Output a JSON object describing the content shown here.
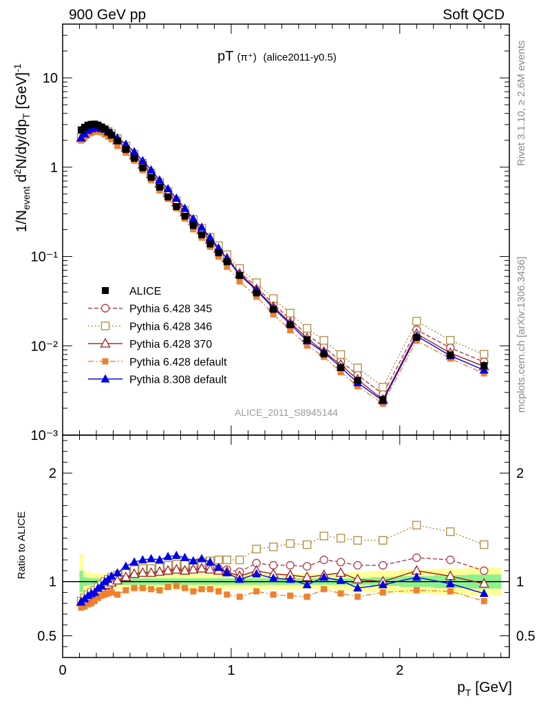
{
  "header": {
    "left": "900 GeV pp",
    "right": "Soft QCD"
  },
  "title": {
    "main": "pT",
    "particle": "(π⁺)",
    "detail": "(alice2011-y0.5)"
  },
  "side_labels": {
    "rivet": "Rivet 3.1.10, ≥ 2.6M events",
    "mcplots": "mcplots.cern.ch [arXiv:1306.3436]"
  },
  "watermark": "ALICE_2011_S8945144",
  "axes": {
    "ylabel_top": "1/N_event d²N/dy/dp_T [GeV]⁻¹",
    "ylabel_ratio": "Ratio to ALICE",
    "xlabel": "p_T [GeV]"
  },
  "colors": {
    "alice": "#000000",
    "p345": "#b03a48",
    "p346": "#b08a3e",
    "p370": "#9b1b1b",
    "p6def": "#f08030",
    "p8def": "#0000e6",
    "band_inner": "#8ef08e",
    "band_outer": "#ffff99"
  },
  "chart_data": {
    "type": "line",
    "x": [
      0.11,
      0.13,
      0.15,
      0.17,
      0.19,
      0.21,
      0.23,
      0.25,
      0.27,
      0.29,
      0.325,
      0.375,
      0.425,
      0.475,
      0.525,
      0.575,
      0.625,
      0.675,
      0.725,
      0.775,
      0.825,
      0.875,
      0.925,
      0.975,
      1.05,
      1.15,
      1.25,
      1.35,
      1.45,
      1.55,
      1.65,
      1.75,
      1.9,
      2.1,
      2.3,
      2.5
    ],
    "xlim": [
      0,
      2.65
    ],
    "top": {
      "yscale": "log",
      "ylim": [
        0.001,
        40
      ],
      "yticks": [
        0.001,
        0.01,
        0.1,
        1,
        10
      ],
      "ytick_labels": [
        "10⁻³",
        "10⁻²",
        "10⁻¹",
        "1",
        "10"
      ]
    },
    "ratio": {
      "ylim": [
        0.3,
        2.35
      ],
      "yticks": [
        0.5,
        1,
        2
      ],
      "ytick_labels": [
        "0.5",
        "1",
        "2"
      ]
    },
    "xticks": [
      0,
      1,
      2
    ],
    "xtick_labels": [
      "0",
      "1",
      "2"
    ],
    "legend_position": "left-middle",
    "data": {
      "name": "ALICE",
      "values": [
        2.62,
        2.8,
        2.96,
        3.02,
        3.04,
        2.96,
        2.82,
        2.66,
        2.47,
        2.28,
        1.97,
        1.58,
        1.26,
        0.985,
        0.768,
        0.597,
        0.465,
        0.362,
        0.283,
        0.222,
        0.175,
        0.138,
        0.11,
        0.0872,
        0.0612,
        0.0391,
        0.0256,
        0.0172,
        0.0117,
        0.0081,
        0.0057,
        0.0041,
        0.0025,
        0.0124,
        0.0079,
        0.006
      ]
    },
    "band": {
      "inner_half": [
        0.1,
        0.04,
        0.035,
        0.03,
        0.03,
        0.03,
        0.03,
        0.03,
        0.03,
        0.03,
        0.03,
        0.03,
        0.03,
        0.03,
        0.03,
        0.03,
        0.03,
        0.03,
        0.03,
        0.03,
        0.03,
        0.03,
        0.03,
        0.03,
        0.03,
        0.03,
        0.03,
        0.03,
        0.03,
        0.03,
        0.03,
        0.03,
        0.04,
        0.05,
        0.06,
        0.065
      ],
      "outer_half": [
        0.25,
        0.1,
        0.09,
        0.08,
        0.075,
        0.075,
        0.07,
        0.07,
        0.07,
        0.07,
        0.07,
        0.07,
        0.07,
        0.07,
        0.07,
        0.07,
        0.07,
        0.07,
        0.07,
        0.07,
        0.07,
        0.07,
        0.07,
        0.07,
        0.07,
        0.07,
        0.07,
        0.07,
        0.07,
        0.07,
        0.08,
        0.09,
        0.1,
        0.11,
        0.12,
        0.13
      ]
    },
    "series": [
      {
        "name": "Pythia 6.428 345",
        "marker": "circle-open",
        "dash": "6,3",
        "ratio": [
          0.81,
          0.84,
          0.86,
          0.88,
          0.89,
          0.92,
          0.94,
          0.96,
          0.98,
          1.0,
          1.02,
          1.05,
          1.08,
          1.09,
          1.09,
          1.1,
          1.11,
          1.12,
          1.11,
          1.12,
          1.13,
          1.12,
          1.12,
          1.11,
          1.09,
          1.17,
          1.15,
          1.15,
          1.14,
          1.2,
          1.18,
          1.15,
          1.15,
          1.22,
          1.2,
          1.1
        ]
      },
      {
        "name": "Pythia 6.428 346",
        "marker": "square-open",
        "dash": "2,3",
        "ratio": [
          0.82,
          0.85,
          0.88,
          0.9,
          0.92,
          0.95,
          0.97,
          1.0,
          1.02,
          1.04,
          1.06,
          1.09,
          1.11,
          1.12,
          1.12,
          1.13,
          1.15,
          1.16,
          1.16,
          1.17,
          1.18,
          1.19,
          1.2,
          1.2,
          1.2,
          1.3,
          1.32,
          1.35,
          1.34,
          1.42,
          1.4,
          1.38,
          1.38,
          1.52,
          1.46,
          1.34
        ]
      },
      {
        "name": "Pythia 6.428 370",
        "marker": "triangle-open",
        "dash": "",
        "ratio": [
          0.81,
          0.83,
          0.86,
          0.88,
          0.89,
          0.92,
          0.94,
          0.96,
          0.97,
          0.99,
          1.01,
          1.04,
          1.07,
          1.08,
          1.08,
          1.09,
          1.1,
          1.11,
          1.1,
          1.11,
          1.12,
          1.11,
          1.1,
          1.09,
          1.05,
          1.1,
          1.07,
          1.06,
          1.04,
          1.06,
          1.08,
          1.02,
          1.0,
          1.1,
          1.05,
          0.98
        ]
      },
      {
        "name": "Pythia 6.428 default",
        "marker": "square-filled",
        "dash": "8,3,2,3",
        "ratio": [
          0.76,
          0.77,
          0.79,
          0.8,
          0.82,
          0.85,
          0.87,
          0.88,
          0.89,
          0.9,
          0.88,
          0.92,
          0.94,
          0.94,
          0.93,
          0.92,
          0.95,
          0.96,
          0.94,
          0.91,
          0.93,
          0.93,
          0.91,
          0.88,
          0.86,
          0.91,
          0.88,
          0.87,
          0.86,
          0.93,
          0.89,
          0.86,
          0.9,
          0.92,
          0.91,
          0.82
        ]
      },
      {
        "name": "Pythia 8.308 default",
        "marker": "triangle-filled",
        "dash": "",
        "ratio": [
          0.81,
          0.84,
          0.87,
          0.89,
          0.9,
          0.94,
          0.96,
          1.0,
          1.02,
          1.05,
          1.08,
          1.14,
          1.18,
          1.2,
          1.21,
          1.2,
          1.23,
          1.24,
          1.22,
          1.19,
          1.21,
          1.18,
          1.13,
          1.08,
          1.02,
          1.07,
          1.03,
          1.02,
          0.97,
          1.04,
          1.01,
          0.94,
          0.97,
          1.04,
          0.98,
          0.89
        ]
      }
    ]
  }
}
